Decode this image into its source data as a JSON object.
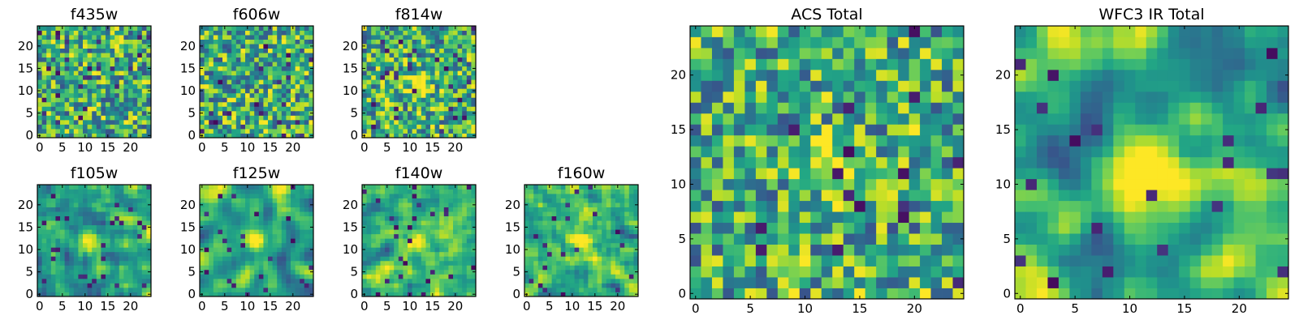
{
  "chart_data": [
    {
      "type": "heatmap",
      "title": "f435w",
      "x_ticks": [
        "0",
        "5",
        "10",
        "15",
        "20"
      ],
      "y_ticks": [
        "0",
        "5",
        "10",
        "15",
        "20"
      ],
      "xlim": [
        -0.5,
        24.5
      ],
      "ylim": [
        -0.5,
        24.5
      ],
      "grid_size": [
        25,
        25
      ],
      "colormap": "viridis"
    },
    {
      "type": "heatmap",
      "title": "f606w",
      "x_ticks": [
        "0",
        "5",
        "10",
        "15",
        "20"
      ],
      "y_ticks": [
        "0",
        "5",
        "10",
        "15",
        "20"
      ],
      "xlim": [
        -0.5,
        24.5
      ],
      "ylim": [
        -0.5,
        24.5
      ],
      "grid_size": [
        25,
        25
      ],
      "colormap": "viridis"
    },
    {
      "type": "heatmap",
      "title": "f814w",
      "x_ticks": [
        "0",
        "5",
        "10",
        "15",
        "20"
      ],
      "y_ticks": [
        "0",
        "5",
        "10",
        "15",
        "20"
      ],
      "xlim": [
        -0.5,
        24.5
      ],
      "ylim": [
        -0.5,
        24.5
      ],
      "grid_size": [
        25,
        25
      ],
      "colormap": "viridis",
      "bright_spot": [
        12,
        12
      ]
    },
    {
      "type": "heatmap",
      "title": "f105w",
      "x_ticks": [
        "0",
        "5",
        "10",
        "15",
        "20"
      ],
      "y_ticks": [
        "0",
        "5",
        "10",
        "15",
        "20"
      ],
      "xlim": [
        -0.5,
        24.5
      ],
      "ylim": [
        -0.5,
        24.5
      ],
      "grid_size": [
        25,
        25
      ],
      "colormap": "viridis",
      "bright_spot": [
        11,
        12
      ]
    },
    {
      "type": "heatmap",
      "title": "f125w",
      "x_ticks": [
        "0",
        "5",
        "10",
        "15",
        "20"
      ],
      "y_ticks": [
        "0",
        "5",
        "10",
        "15",
        "20"
      ],
      "xlim": [
        -0.5,
        24.5
      ],
      "ylim": [
        -0.5,
        24.5
      ],
      "grid_size": [
        25,
        25
      ],
      "colormap": "viridis",
      "bright_spot": [
        12,
        12
      ]
    },
    {
      "type": "heatmap",
      "title": "f140w",
      "x_ticks": [
        "0",
        "5",
        "10",
        "15",
        "20"
      ],
      "y_ticks": [
        "0",
        "5",
        "10",
        "15",
        "20"
      ],
      "xlim": [
        -0.5,
        24.5
      ],
      "ylim": [
        -0.5,
        24.5
      ],
      "grid_size": [
        25,
        25
      ],
      "colormap": "viridis",
      "bright_spot": [
        12,
        12
      ]
    },
    {
      "type": "heatmap",
      "title": "f160w",
      "x_ticks": [
        "0",
        "5",
        "10",
        "15",
        "20"
      ],
      "y_ticks": [
        "0",
        "5",
        "10",
        "15",
        "20"
      ],
      "xlim": [
        -0.5,
        24.5
      ],
      "ylim": [
        -0.5,
        24.5
      ],
      "grid_size": [
        25,
        25
      ],
      "colormap": "viridis",
      "bright_spot": [
        12,
        12
      ]
    },
    {
      "type": "heatmap",
      "title": "ACS Total",
      "x_ticks": [
        "0",
        "5",
        "10",
        "15",
        "20"
      ],
      "y_ticks": [
        "0",
        "5",
        "10",
        "15",
        "20"
      ],
      "xlim": [
        -0.5,
        24.5
      ],
      "ylim": [
        -0.5,
        24.5
      ],
      "grid_size": [
        25,
        25
      ],
      "colormap": "viridis",
      "bright_spot": [
        12,
        12
      ]
    },
    {
      "type": "heatmap",
      "title": "WFC3 IR Total",
      "x_ticks": [
        "0",
        "5",
        "10",
        "15",
        "20"
      ],
      "y_ticks": [
        "0",
        "5",
        "10",
        "15",
        "20"
      ],
      "xlim": [
        -0.5,
        24.5
      ],
      "ylim": [
        -0.5,
        24.5
      ],
      "grid_size": [
        25,
        25
      ],
      "colormap": "viridis",
      "bright_spot": [
        12,
        12
      ]
    }
  ]
}
